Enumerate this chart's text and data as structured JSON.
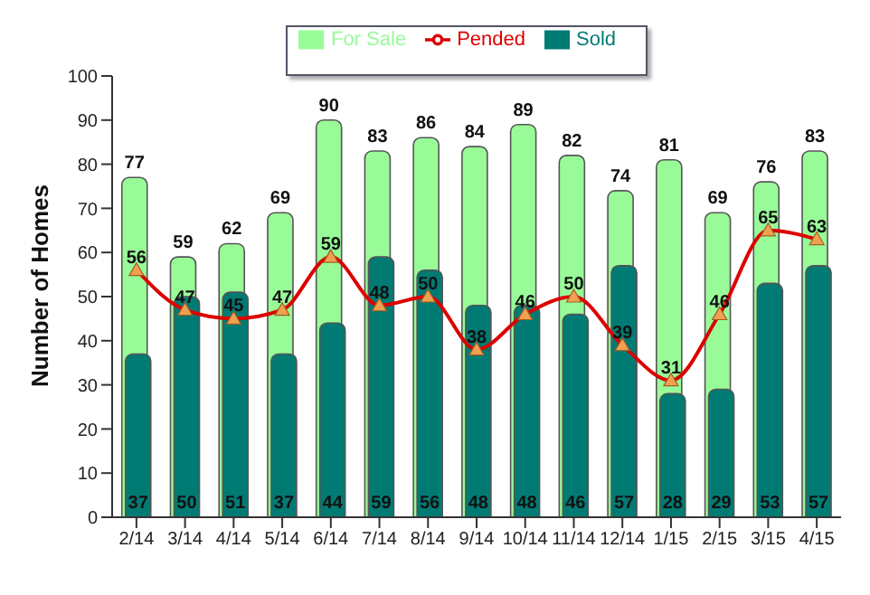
{
  "chart_data": {
    "type": "bar",
    "ylabel": "Number of Homes",
    "categories": [
      "2/14",
      "3/14",
      "4/14",
      "5/14",
      "6/14",
      "7/14",
      "8/14",
      "9/14",
      "10/14",
      "11/14",
      "12/14",
      "1/15",
      "2/15",
      "3/15",
      "4/15"
    ],
    "series": [
      {
        "name": "For Sale",
        "color": "#98fb98",
        "values": [
          77,
          59,
          62,
          69,
          90,
          83,
          86,
          84,
          89,
          82,
          74,
          81,
          69,
          76,
          83
        ]
      },
      {
        "name": "Sold",
        "color": "#007b74",
        "values": [
          37,
          50,
          51,
          37,
          44,
          59,
          56,
          48,
          48,
          46,
          57,
          28,
          29,
          53,
          57
        ]
      },
      {
        "name": "Pended",
        "type": "line",
        "color": "#dd0000",
        "values": [
          56,
          47,
          45,
          47,
          59,
          48,
          50,
          38,
          46,
          50,
          39,
          31,
          46,
          65,
          63
        ]
      }
    ],
    "ylim": [
      0,
      100
    ],
    "yticks": [
      0,
      10,
      20,
      30,
      40,
      50,
      60,
      70,
      80,
      90,
      100
    ],
    "legend": "top",
    "marker": "triangle",
    "line_style": "solid",
    "data_labels": true
  }
}
